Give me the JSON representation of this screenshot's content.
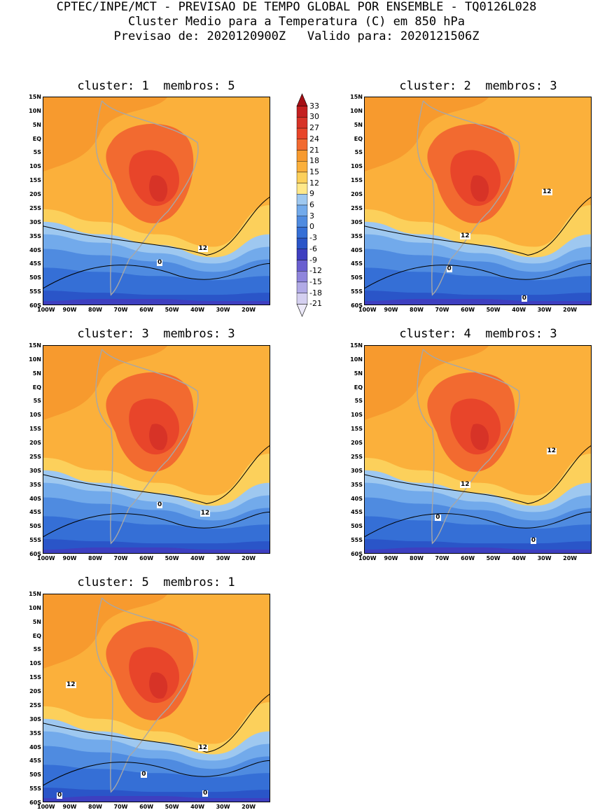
{
  "header": {
    "line1": "CPTEC/INPE/MCT - PREVISAO DE TEMPO GLOBAL POR ENSEMBLE - TQ0126L028",
    "line2": "Cluster Medio para a Temperatura (C) em 850 hPa",
    "line3": "Previsao de: 2020120900Z   Valido para: 2020121506Z"
  },
  "panels": [
    {
      "title": "cluster: 1  membros: 5",
      "contours": [
        "12",
        "0"
      ]
    },
    {
      "title": "cluster: 2  membros: 3",
      "contours": [
        "12",
        "12",
        "0",
        "0"
      ]
    },
    {
      "title": "cluster: 3  membros: 3",
      "contours": [
        "0",
        "12"
      ]
    },
    {
      "title": "cluster: 4  membros: 3",
      "contours": [
        "12",
        "12",
        "0",
        "0"
      ]
    },
    {
      "title": "cluster: 5  membros: 1",
      "contours": [
        "12",
        "12",
        "0",
        "0",
        "0"
      ]
    }
  ],
  "lat_labels": [
    "15N",
    "10N",
    "5N",
    "EQ",
    "5S",
    "10S",
    "15S",
    "20S",
    "25S",
    "30S",
    "35S",
    "40S",
    "45S",
    "50S",
    "55S",
    "60S"
  ],
  "lon_labels": [
    "100W",
    "90W",
    "80W",
    "70W",
    "60W",
    "50W",
    "40W",
    "30W",
    "20W"
  ],
  "colorbar": {
    "labels": [
      "33",
      "30",
      "27",
      "24",
      "21",
      "18",
      "15",
      "12",
      "9",
      "6",
      "3",
      "0",
      "-3",
      "-6",
      "-9",
      "-12",
      "-15",
      "-18",
      "-21"
    ],
    "colors": [
      "#a50f15",
      "#c42020",
      "#d73327",
      "#e8452a",
      "#f26a30",
      "#f79a2e",
      "#fbb03b",
      "#fcd05b",
      "#ffe88a",
      "#9ec8f0",
      "#72aaeb",
      "#4f8be0",
      "#356fd6",
      "#2a55c8",
      "#3e3fc0",
      "#6a5fd0",
      "#8f85dc",
      "#b1aae6",
      "#d4cff0",
      "#ece9f8"
    ]
  }
}
